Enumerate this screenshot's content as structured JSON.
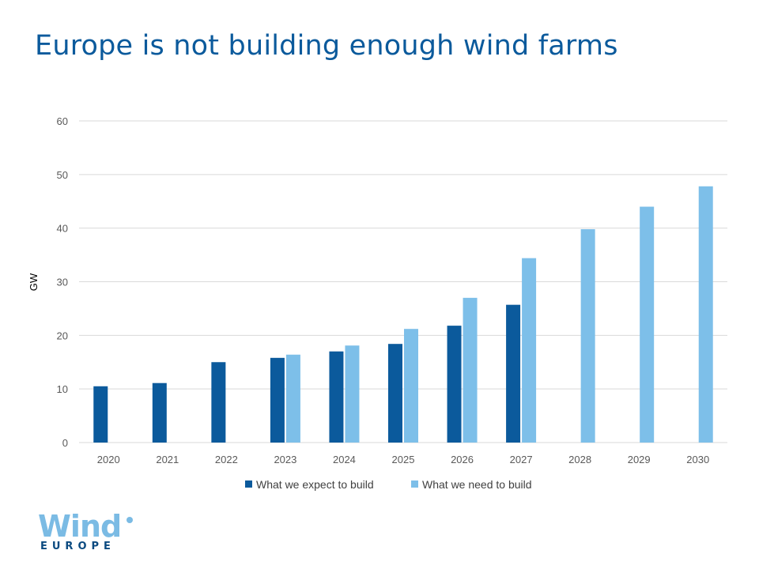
{
  "title": "Europe is not building enough wind farms",
  "logo": {
    "word": "Wind",
    "sub": "EUROPE"
  },
  "chart_data": {
    "type": "bar",
    "title": "Europe is not building enough wind farms",
    "xlabel": "",
    "ylabel": "GW",
    "ylim": [
      0,
      60
    ],
    "yticks": [
      0,
      10,
      20,
      30,
      40,
      50,
      60
    ],
    "grid": true,
    "legend_position": "bottom",
    "categories": [
      "2020",
      "2021",
      "2022",
      "2023",
      "2024",
      "2025",
      "2026",
      "2027",
      "2028",
      "2029",
      "2030"
    ],
    "series": [
      {
        "name": "What we expect to build",
        "color": "#0b5a9c",
        "values": [
          10.5,
          11.1,
          15.0,
          15.8,
          17.0,
          18.4,
          21.8,
          25.7,
          null,
          null,
          null
        ]
      },
      {
        "name": "What we need to build",
        "color": "#7dbfe9",
        "values": [
          null,
          null,
          null,
          16.4,
          18.1,
          21.2,
          27.0,
          34.4,
          39.8,
          44.0,
          47.8
        ]
      }
    ]
  }
}
